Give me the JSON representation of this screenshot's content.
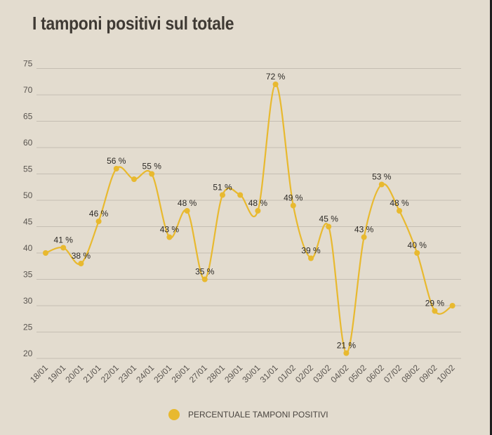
{
  "chart_data": {
    "type": "line",
    "title": "I tamponi positivi sul totale",
    "categories": [
      "18/01",
      "19/01",
      "20/01",
      "21/01",
      "22/01",
      "23/01",
      "24/01",
      "25/01",
      "26/01",
      "27/01",
      "28/01",
      "29/01",
      "30/01",
      "31/01",
      "01/02",
      "02/02",
      "03/02",
      "04/02",
      "05/02",
      "06/02",
      "07/02",
      "08/02",
      "09/02",
      "10/02"
    ],
    "series": [
      {
        "name": "PERCENTUALE TAMPONI POSITIVI",
        "values": [
          40,
          41,
          38,
          46,
          56,
          54,
          55,
          43,
          48,
          35,
          51,
          51,
          48,
          72,
          49,
          39,
          45,
          21,
          43,
          53,
          48,
          40,
          29,
          30
        ],
        "labels": [
          "",
          "41 %",
          "38 %",
          "46 %",
          "56 %",
          "",
          "55 %",
          "43 %",
          "48 %",
          "35 %",
          "51 %",
          "",
          "48 %",
          "72 %",
          "49 %",
          "39 %",
          "45 %",
          "21 %",
          "43 %",
          "53 %",
          "48 %",
          "40 %",
          "29 %",
          ""
        ]
      }
    ],
    "yticks": [
      20,
      25,
      30,
      35,
      40,
      45,
      50,
      55,
      60,
      65,
      70,
      75
    ],
    "ylim": [
      20,
      75
    ],
    "xlabel": "",
    "ylabel": "",
    "grid": true,
    "legend_position": "bottom-center",
    "colors": {
      "line": "#e8b92f",
      "grid": "#c5beb3",
      "background": "#e3dccf"
    }
  }
}
